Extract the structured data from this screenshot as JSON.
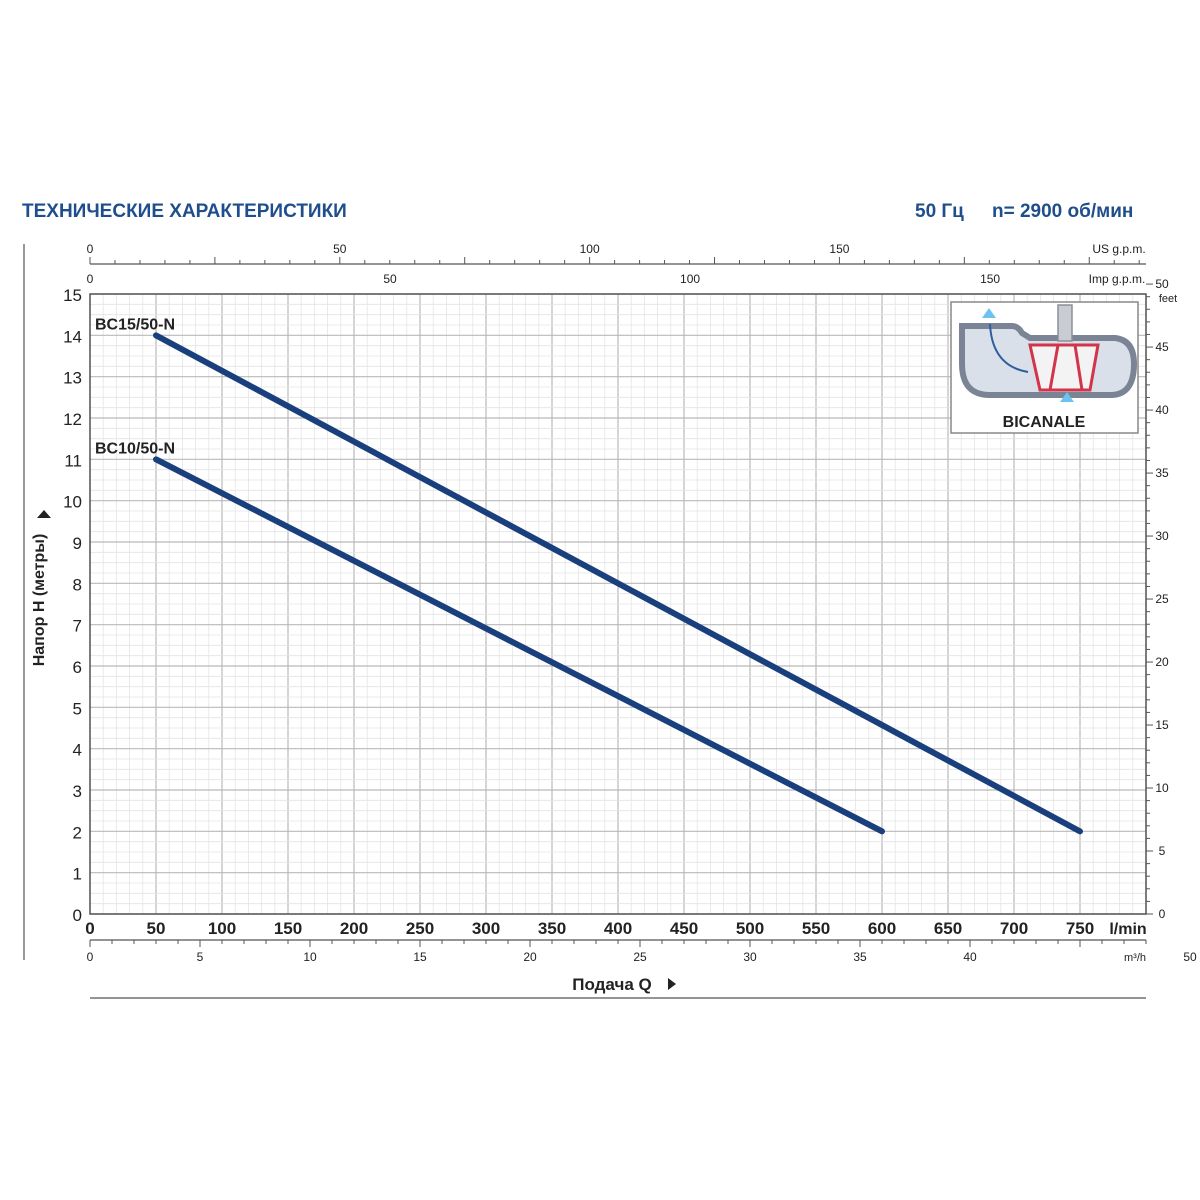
{
  "header": {
    "title": "ТЕХНИЧЕСКИЕ ХАРАКТЕРИСТИКИ",
    "frequency": "50 Гц",
    "speed": "n= 2900 об/мин"
  },
  "inset": {
    "label": "BICANALE"
  },
  "colors": {
    "header": "#1f4e8c",
    "curve": "#1a3f7d",
    "major_grid": "#b9b9b9",
    "minor_grid": "#e4e4e4"
  },
  "chart_data": {
    "type": "line",
    "title": "",
    "xlabel": "Подача Q",
    "ylabel": "Напор H (метры)",
    "x_unit": "l/min",
    "xlim": [
      0,
      800
    ],
    "ylim": [
      0,
      15
    ],
    "x_ticks": [
      0,
      50,
      100,
      150,
      200,
      250,
      300,
      350,
      400,
      450,
      500,
      550,
      600,
      650,
      700,
      750
    ],
    "y_ticks": [
      0,
      1,
      2,
      3,
      4,
      5,
      6,
      7,
      8,
      9,
      10,
      11,
      12,
      13,
      14,
      15
    ],
    "grid": true,
    "series": [
      {
        "name": "BC15/50-N",
        "x": [
          50,
          750
        ],
        "y": [
          14,
          2
        ]
      },
      {
        "name": "BC10/50-N",
        "x": [
          50,
          600
        ],
        "y": [
          11,
          2
        ]
      }
    ],
    "secondary_axes": {
      "us_gpm": {
        "label": "US g.p.m.",
        "ticks": [
          0,
          50,
          100,
          150
        ]
      },
      "imp_gpm": {
        "label": "Imp g.p.m.",
        "ticks": [
          0,
          50,
          100,
          150
        ]
      },
      "m3h": {
        "label": "m³/h",
        "ticks": [
          0,
          5,
          10,
          15,
          20,
          25,
          30,
          35,
          40,
          50
        ]
      },
      "feet": {
        "label": "feet",
        "ticks": [
          0,
          5,
          10,
          15,
          20,
          25,
          30,
          35,
          40,
          45,
          50
        ]
      }
    }
  }
}
